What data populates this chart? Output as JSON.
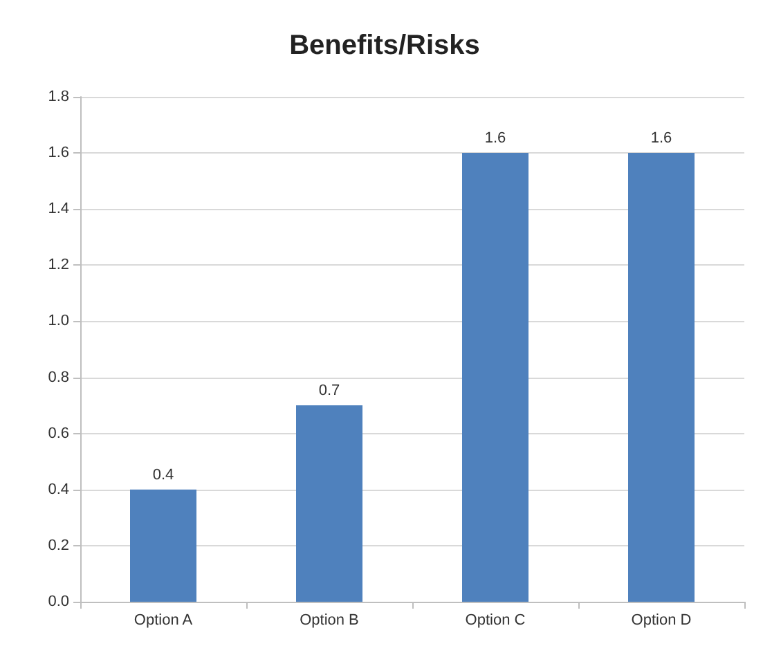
{
  "chart_data": {
    "type": "bar",
    "title": "Benefits/Risks",
    "categories": [
      "Option A",
      "Option B",
      "Option C",
      "Option D"
    ],
    "values": [
      0.4,
      0.7,
      1.6,
      1.6
    ],
    "color": "#4f81bd",
    "ylim": [
      0,
      1.8
    ],
    "yticks": [
      {
        "value": 0,
        "label": "0.0"
      },
      0.2,
      0.4,
      0.6,
      0.8,
      {
        "value": 1,
        "label": "1.0"
      },
      1.2,
      1.4,
      1.6,
      1.8
    ],
    "grid": "y",
    "data_labels": true
  }
}
